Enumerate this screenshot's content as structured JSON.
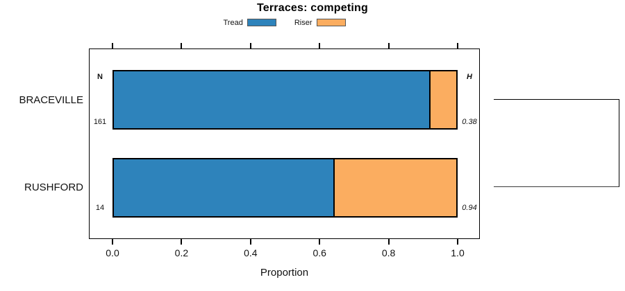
{
  "figure": {
    "background": "#ffffff"
  },
  "colors": {
    "tread": "#2E83BB",
    "riser": "#FBAD60",
    "bar_border": "#000000",
    "axis": "#000000"
  },
  "chart_data": {
    "type": "bar",
    "subtype": "horizontal-stacked-proportion",
    "title": "Terraces: competing",
    "xlabel": "Proportion",
    "xlim": [
      0,
      1
    ],
    "x_ticks": [
      "0.0",
      "0.2",
      "0.4",
      "0.6",
      "0.8",
      "1.0"
    ],
    "grid": false,
    "legend_position": "top-center",
    "categories": [
      "BRACEVILLE",
      "RUSHFORD"
    ],
    "series": [
      {
        "name": "Tread",
        "color": "#2E83BB",
        "values": [
          0.92,
          0.64
        ]
      },
      {
        "name": "Riser",
        "color": "#FBAD60",
        "values": [
          0.08,
          0.36
        ]
      }
    ],
    "annotations": {
      "n_header": "N",
      "h_header": "H",
      "n_values": [
        "161",
        "14"
      ],
      "h_values": [
        "0.38",
        "0.94"
      ]
    },
    "bracket": {
      "description": "bracket on right side joining the two category rows",
      "color": "#000000"
    }
  }
}
